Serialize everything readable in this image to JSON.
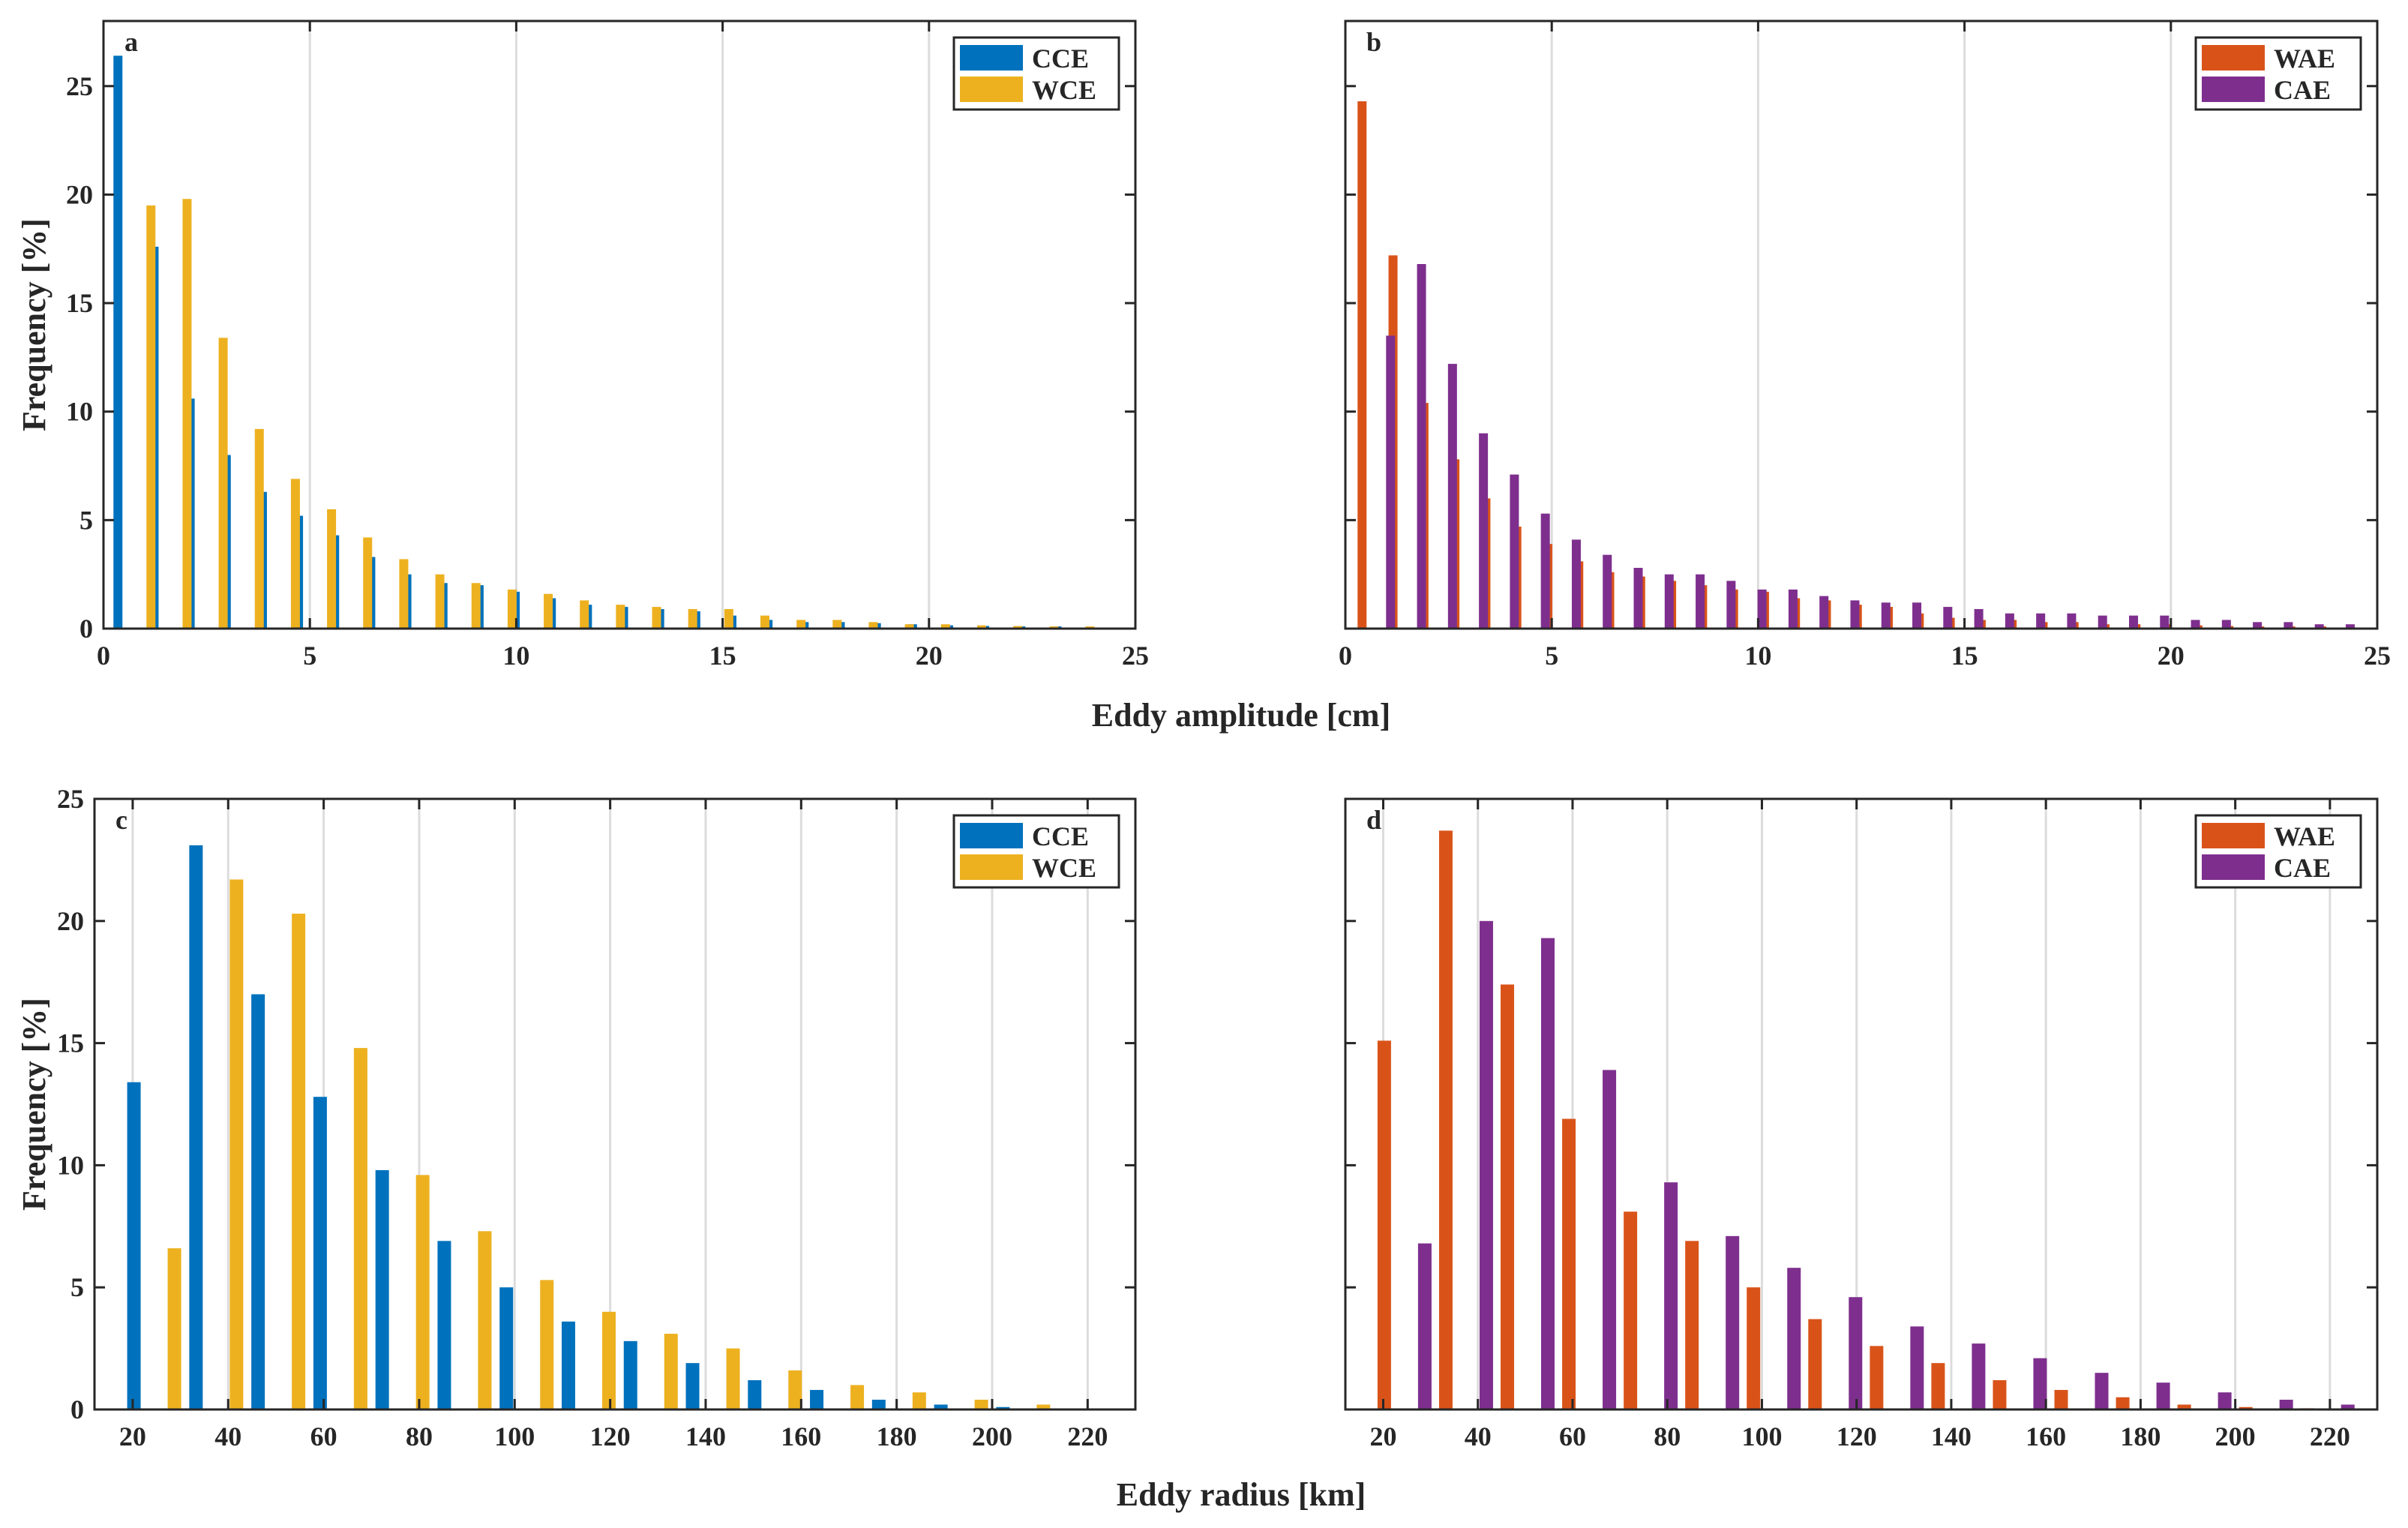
{
  "figure": {
    "xlabel_top": "Eddy amplitude [cm]",
    "xlabel_bottom": "Eddy radius [km]"
  },
  "colors": {
    "CCE": "#0072BD",
    "WCE": "#EDB120",
    "WAE": "#D95319",
    "CAE": "#7E2F8E",
    "grid": "#dcdcdc",
    "axis": "#262626"
  },
  "chart_data": [
    {
      "panel": "a",
      "type": "bar",
      "xlabel": "Eddy amplitude [cm]",
      "ylabel": "Frequency [%]",
      "xlim": [
        0,
        25
      ],
      "ylim": [
        0,
        28
      ],
      "xticks": [
        "0",
        "5",
        "10",
        "15",
        "20",
        "25"
      ],
      "yticks": [
        "0",
        "5",
        "10",
        "15",
        "20",
        "25"
      ],
      "xtick_values": [
        0,
        5,
        10,
        15,
        20,
        25
      ],
      "ytick_values": [
        0,
        5,
        10,
        15,
        20,
        25
      ],
      "grid": "x",
      "legend_position": "top-right",
      "x": [
        0.75,
        1.625,
        2.5,
        3.375,
        4.25,
        5.125,
        6.0,
        6.875,
        7.75,
        8.625,
        9.5,
        10.375,
        11.25,
        12.125,
        13.0,
        13.875,
        14.75,
        15.625,
        16.5,
        17.375,
        18.25,
        19.125,
        20.0,
        20.875,
        21.75,
        22.625,
        23.5
      ],
      "series": [
        {
          "name": "CCE",
          "color_key": "CCE",
          "values": [
            26.4,
            17.6,
            10.6,
            8.0,
            6.3,
            5.2,
            4.3,
            3.3,
            2.5,
            2.1,
            2.0,
            1.7,
            1.4,
            1.1,
            1.0,
            0.9,
            0.8,
            0.6,
            0.4,
            0.3,
            0.3,
            0.25,
            0.2,
            0.15,
            0.12,
            0.1,
            0.1
          ]
        },
        {
          "name": "WCE",
          "color_key": "WCE",
          "values": [
            19.5,
            19.8,
            13.4,
            9.2,
            6.9,
            5.5,
            4.2,
            3.2,
            2.5,
            2.1,
            1.8,
            1.6,
            1.3,
            1.1,
            1.0,
            0.9,
            0.9,
            0.6,
            0.4,
            0.4,
            0.3,
            0.2,
            0.2,
            0.15,
            0.12,
            0.1,
            0.1
          ]
        }
      ]
    },
    {
      "panel": "b",
      "type": "bar",
      "xlabel": "Eddy amplitude [cm]",
      "ylabel": "Frequency [%]",
      "xlim": [
        0,
        25
      ],
      "ylim": [
        0,
        28
      ],
      "xticks": [
        "0",
        "5",
        "10",
        "15",
        "20",
        "25"
      ],
      "yticks": [],
      "xtick_values": [
        0,
        5,
        10,
        15,
        20,
        25
      ],
      "ytick_values": [
        0,
        5,
        10,
        15,
        20,
        25
      ],
      "grid": "x",
      "legend_position": "top-right",
      "x": [
        0.75,
        1.5,
        2.25,
        3.0,
        3.75,
        4.5,
        5.25,
        6.0,
        6.75,
        7.5,
        8.25,
        9.0,
        9.75,
        10.5,
        11.25,
        12.0,
        12.75,
        13.5,
        14.25,
        15.0,
        15.75,
        16.5,
        17.25,
        18.0,
        18.75,
        19.5,
        20.25,
        21.0,
        21.75,
        22.5,
        23.25,
        24.0
      ],
      "series": [
        {
          "name": "WAE",
          "color_key": "WAE",
          "values": [
            24.3,
            17.2,
            10.4,
            7.8,
            6.0,
            4.7,
            3.9,
            3.1,
            2.6,
            2.4,
            2.2,
            2.0,
            1.8,
            1.7,
            1.4,
            1.3,
            1.1,
            1.0,
            0.7,
            0.5,
            0.4,
            0.4,
            0.3,
            0.3,
            0.2,
            0.2,
            0.2,
            0.15,
            0.12,
            0.1,
            0.1,
            0.1
          ]
        },
        {
          "name": "CAE",
          "color_key": "CAE",
          "values": [
            13.5,
            16.8,
            12.2,
            9.0,
            7.1,
            5.3,
            4.1,
            3.4,
            2.8,
            2.5,
            2.5,
            2.2,
            1.8,
            1.8,
            1.5,
            1.3,
            1.2,
            1.2,
            1.0,
            0.9,
            0.7,
            0.7,
            0.7,
            0.6,
            0.6,
            0.6,
            0.4,
            0.4,
            0.3,
            0.3,
            0.2,
            0.2
          ]
        }
      ]
    },
    {
      "panel": "c",
      "type": "bar",
      "xlabel": "Eddy radius [km]",
      "ylabel": "Frequency [%]",
      "xlim": [
        12,
        230
      ],
      "ylim": [
        0,
        25
      ],
      "xticks": [
        "20",
        "40",
        "60",
        "80",
        "100",
        "120",
        "140",
        "160",
        "180",
        "200",
        "220"
      ],
      "yticks": [
        "0",
        "5",
        "10",
        "15",
        "20",
        "25"
      ],
      "xtick_values": [
        20,
        40,
        60,
        80,
        100,
        120,
        140,
        160,
        180,
        200,
        220
      ],
      "ytick_values": [
        0,
        5,
        10,
        15,
        20,
        25
      ],
      "grid": "x",
      "legend_position": "top-right",
      "x": [
        24.5,
        37.5,
        50.5,
        63.5,
        76.5,
        89.5,
        102.5,
        115.5,
        128.5,
        141.5,
        154.5,
        167.5,
        180.5,
        193.5,
        206.5
      ],
      "series": [
        {
          "name": "CCE",
          "color_key": "CCE",
          "values": [
            13.4,
            23.1,
            17.0,
            12.8,
            9.8,
            6.9,
            5.0,
            3.6,
            2.8,
            1.9,
            1.2,
            0.8,
            0.4,
            0.2,
            0.1
          ]
        },
        {
          "name": "WCE",
          "color_key": "WCE",
          "values": [
            6.6,
            21.7,
            20.3,
            14.8,
            9.6,
            7.3,
            5.3,
            4.0,
            3.1,
            2.5,
            1.6,
            1.0,
            0.7,
            0.4,
            0.2
          ]
        }
      ]
    },
    {
      "panel": "d",
      "type": "bar",
      "xlabel": "Eddy radius [km]",
      "ylabel": "Frequency [%]",
      "xlim": [
        12,
        230
      ],
      "ylim": [
        0,
        25
      ],
      "xticks": [
        "20",
        "40",
        "60",
        "80",
        "100",
        "120",
        "140",
        "160",
        "180",
        "200",
        "220"
      ],
      "yticks": [],
      "xtick_values": [
        20,
        40,
        60,
        80,
        100,
        120,
        140,
        160,
        180,
        200,
        220
      ],
      "ytick_values": [
        0,
        5,
        10,
        15,
        20,
        25
      ],
      "grid": "x",
      "legend_position": "top-right",
      "x": [
        24.5,
        37.5,
        50.5,
        63.5,
        76.5,
        89.5,
        102.5,
        115.5,
        128.5,
        141.5,
        154.5,
        167.5,
        180.5,
        193.5,
        206.5,
        219.5
      ],
      "series": [
        {
          "name": "WAE",
          "color_key": "WAE",
          "values": [
            15.1,
            23.7,
            17.4,
            11.9,
            8.1,
            6.9,
            5.0,
            3.7,
            2.6,
            1.9,
            1.2,
            0.8,
            0.5,
            0.2,
            0.1,
            0.05
          ]
        },
        {
          "name": "CAE",
          "color_key": "CAE",
          "values": [
            6.8,
            20.0,
            19.3,
            13.9,
            9.3,
            7.1,
            5.8,
            4.6,
            3.4,
            2.7,
            2.1,
            1.5,
            1.1,
            0.7,
            0.4,
            0.2
          ]
        }
      ]
    }
  ]
}
